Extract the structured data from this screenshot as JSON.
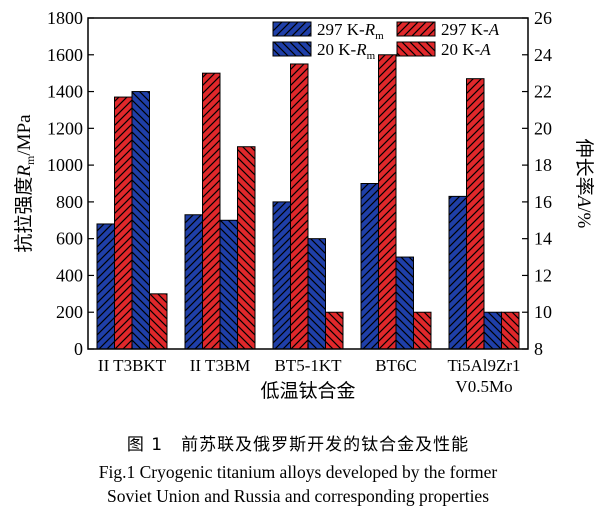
{
  "figure": {
    "caption_cn": "图 1　前苏联及俄罗斯开发的钛合金及性能",
    "caption_en_line1": "Fig.1 Cryogenic titanium alloys developed by the former",
    "caption_en_line2": "Soviet Union and Russia and corresponding properties"
  },
  "chart_data": {
    "type": "bar",
    "xlabel": "低温钛合金",
    "ylabel_left": "抗拉强度Rm/MPa",
    "ylabel_right": "伸长率A/%",
    "categories": [
      "II T3BKT",
      "II T3BM",
      "BT5-1KT",
      "BT6C",
      "Ti5Al9Zr1\nV0.5Mo"
    ],
    "ylim_left": [
      0,
      1800
    ],
    "yticks_left": [
      0,
      200,
      400,
      600,
      800,
      1000,
      1200,
      1400,
      1600,
      1800
    ],
    "ylim_right": [
      8,
      26
    ],
    "yticks_right": [
      8,
      10,
      12,
      14,
      16,
      18,
      20,
      22,
      24,
      26
    ],
    "grid": false,
    "legend_position": "top-right",
    "series": [
      {
        "name": "297 K-Rm",
        "axis": "left",
        "color": "#1f3fa8",
        "hatch": "forward",
        "values": [
          680,
          730,
          800,
          900,
          830
        ]
      },
      {
        "name": "297 K-A",
        "axis": "right",
        "color": "#e0282b",
        "hatch": "forward",
        "values": [
          21.7,
          23,
          23.5,
          24,
          22.7
        ]
      },
      {
        "name": "20 K-Rm",
        "axis": "left",
        "color": "#1f3fa8",
        "hatch": "back",
        "values": [
          1400,
          700,
          600,
          500,
          200
        ]
      },
      {
        "name": "20 K-A",
        "axis": "right",
        "color": "#e0282b",
        "hatch": "back",
        "values": [
          11,
          19,
          10,
          10,
          10
        ]
      }
    ]
  }
}
